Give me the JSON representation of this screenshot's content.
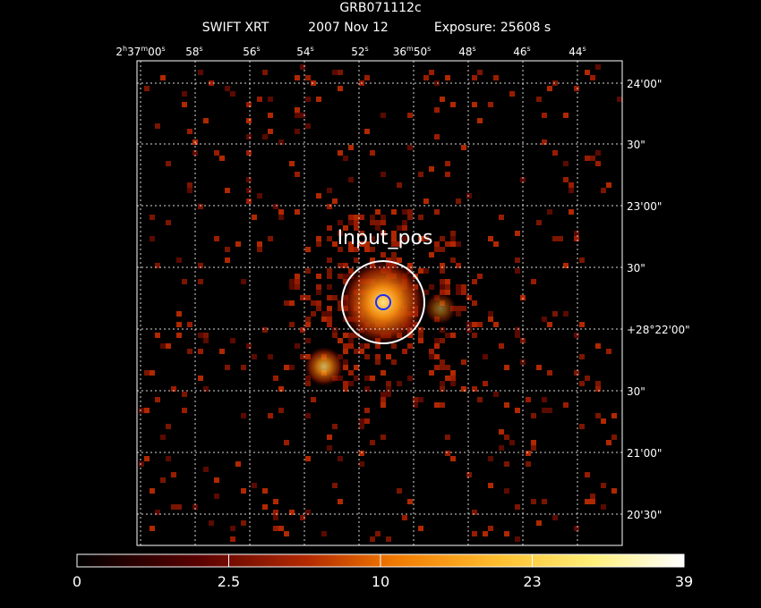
{
  "header": {
    "title": "GRB071112c",
    "instrument": "SWIFT XRT",
    "date": "2007 Nov 12",
    "exposure": "Exposure: 25608 s"
  },
  "ra_labels": [
    "2h37m00s",
    "58s",
    "56s",
    "54s",
    "52s",
    "36m50s",
    "48s",
    "46s",
    "44s"
  ],
  "dec_labels": [
    "24'00\"",
    "30\"",
    "23'00\"",
    "30\"",
    "+28°22'00\"",
    "30\"",
    "21'00\"",
    "20'30\""
  ],
  "annotation": "Input_pos",
  "colorbar": {
    "ticks": [
      "0",
      "2.5",
      "10",
      "23",
      "39"
    ]
  }
}
